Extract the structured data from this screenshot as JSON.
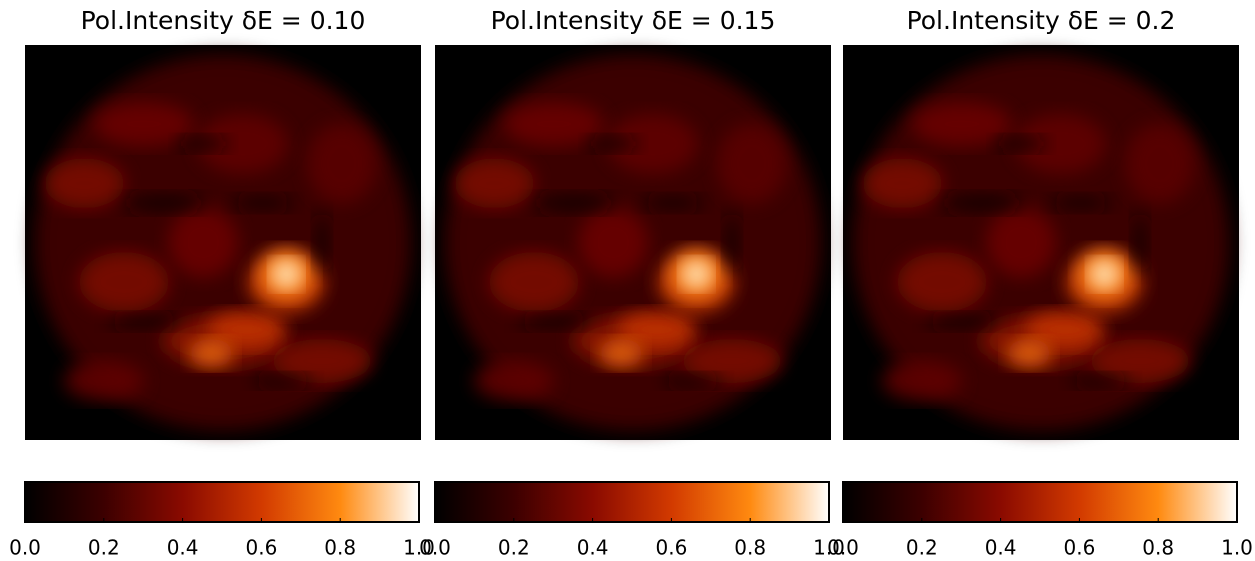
{
  "chart_data": [
    {
      "type": "image",
      "title": "Pol.Intensity δE = 0.10",
      "colorbar": {
        "lim": [
          0,
          1
        ],
        "ticks": [
          {
            "value": 0,
            "label": "0.0"
          },
          {
            "value": 0.2,
            "label": "0.2"
          },
          {
            "value": 0.4,
            "label": "0.4"
          },
          {
            "value": 0.6,
            "label": "0.6"
          },
          {
            "value": 0.8,
            "label": "0.8"
          },
          {
            "value": 1,
            "label": "1.0"
          }
        ],
        "colormap": [
          "#000000",
          "#3c0000",
          "#8a0a00",
          "#d23a00",
          "#ff8a10",
          "#ffffff"
        ]
      }
    },
    {
      "type": "image",
      "title": "Pol.Intensity δE = 0.15",
      "colorbar": {
        "lim": [
          0,
          1
        ],
        "ticks": [
          {
            "value": 0,
            "label": "0.0"
          },
          {
            "value": 0.2,
            "label": "0.2"
          },
          {
            "value": 0.4,
            "label": "0.4"
          },
          {
            "value": 0.6,
            "label": "0.6"
          },
          {
            "value": 0.8,
            "label": "0.8"
          },
          {
            "value": 1,
            "label": "1.0"
          }
        ],
        "colormap": [
          "#000000",
          "#3c0000",
          "#8a0a00",
          "#d23a00",
          "#ff8a10",
          "#ffffff"
        ]
      }
    },
    {
      "type": "image",
      "title": "Pol.Intensity δE = 0.2",
      "colorbar": {
        "lim": [
          0,
          1
        ],
        "ticks": [
          {
            "value": 0,
            "label": "0.0"
          },
          {
            "value": 0.2,
            "label": "0.2"
          },
          {
            "value": 0.4,
            "label": "0.4"
          },
          {
            "value": 0.6,
            "label": "0.6"
          },
          {
            "value": 0.8,
            "label": "0.8"
          },
          {
            "value": 1,
            "label": "1.0"
          }
        ],
        "colormap": [
          "#000000",
          "#3c0000",
          "#8a0a00",
          "#d23a00",
          "#ff8a10",
          "#ffffff"
        ]
      }
    }
  ]
}
